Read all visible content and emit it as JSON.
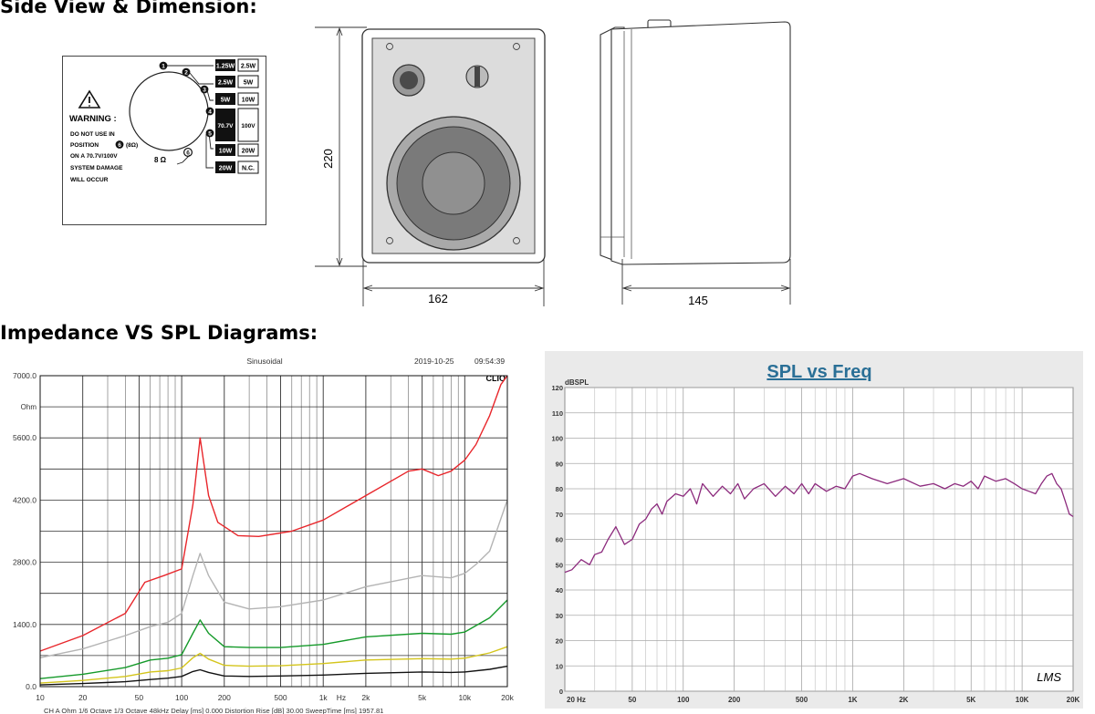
{
  "headers": {
    "side_view": "Side View & Dimension:",
    "diagrams": "Impedance VS SPL Diagrams:"
  },
  "tap_panel": {
    "warning_title": "WARNING :",
    "warning_lines": [
      "DO NOT USE IN",
      "POSITION",
      "(8Ω)",
      "ON A 70.7V/100V",
      "SYSTEM DAMAGE",
      "WILL OCCUR"
    ],
    "position_number": "6",
    "numbers": [
      "1",
      "2",
      "3",
      "4",
      "5",
      "6"
    ],
    "ohm_label": "8 Ω",
    "taps_70v": [
      "1.25W",
      "2.5W",
      "5W",
      "70.7V",
      "10W",
      "20W"
    ],
    "taps_100v": [
      "2.5W",
      "5W",
      "10W",
      "100V",
      "20W",
      "N.C."
    ]
  },
  "dimensions": {
    "height": "220",
    "width": "162",
    "depth": "145"
  },
  "impedance_chart": {
    "header_center": "Sinusoidal",
    "header_date": "2019-10-25",
    "header_time": "09:54:39",
    "logo": "CLIO",
    "y_unit": "Ohm",
    "x_unit": "Hz",
    "y_ticks": [
      "7000.0",
      "5600.0",
      "4200.0",
      "2800.0",
      "1400.0",
      "0.0"
    ],
    "x_ticks": [
      "10",
      "20",
      "50",
      "100",
      "200",
      "500",
      "1k",
      "2k",
      "5k",
      "10k",
      "20k"
    ],
    "footer": "CH A  Ohm   1/6 Octave   1/3 Octave   48kHz   Delay [ms] 0.000   Distortion Rise [dB] 30.00   SweepTime [ms] 1957.81",
    "colors": {
      "red": "#e8262b",
      "gray": "#b4b4b4",
      "green": "#159a2a",
      "yellow": "#d4c51c",
      "black": "#111111"
    }
  },
  "spl_chart": {
    "title": "SPL vs Freq",
    "y_unit": "dBSPL",
    "y_ticks": [
      "120",
      "110",
      "100",
      "90",
      "80",
      "70",
      "60",
      "50",
      "40",
      "30",
      "20",
      "10",
      "0"
    ],
    "x_ticks": [
      "20  Hz",
      "50",
      "100",
      "200",
      "500",
      "1K",
      "2K",
      "5K",
      "10K",
      "20K"
    ],
    "logo": "LMS",
    "curve_color": "#8c2a7d",
    "title_color": "#2a6f96"
  },
  "chart_data": [
    {
      "type": "line",
      "title": "",
      "xlabel": "Hz",
      "ylabel": "Ohm",
      "xscale": "log",
      "xlim": [
        10,
        20000
      ],
      "ylim": [
        0,
        7000
      ],
      "grid": true,
      "series": [
        {
          "color": "#e8262b",
          "x": [
            10,
            20,
            40,
            55,
            75,
            100,
            120,
            135,
            155,
            180,
            250,
            350,
            600,
            1000,
            2000,
            4000,
            5000,
            6500,
            8000,
            10000,
            12000,
            15000,
            18000,
            20000
          ],
          "values": [
            800,
            1150,
            1650,
            2350,
            2500,
            2650,
            4100,
            5600,
            4300,
            3700,
            3400,
            3380,
            3500,
            3750,
            4300,
            4850,
            4900,
            4750,
            4850,
            5100,
            5450,
            6100,
            6800,
            7000
          ]
        },
        {
          "color": "#b4b4b4",
          "x": [
            10,
            20,
            40,
            60,
            80,
            100,
            120,
            135,
            155,
            200,
            300,
            500,
            1000,
            2000,
            5000,
            8000,
            10000,
            12000,
            15000,
            20000
          ],
          "values": [
            650,
            850,
            1150,
            1350,
            1450,
            1650,
            2500,
            3000,
            2500,
            1900,
            1750,
            1800,
            1950,
            2250,
            2500,
            2450,
            2550,
            2750,
            3050,
            4200
          ]
        },
        {
          "color": "#159a2a",
          "x": [
            10,
            20,
            40,
            60,
            80,
            100,
            120,
            135,
            155,
            200,
            300,
            500,
            1000,
            2000,
            5000,
            8000,
            10000,
            15000,
            20000
          ],
          "values": [
            180,
            280,
            430,
            600,
            640,
            720,
            1200,
            1500,
            1200,
            900,
            880,
            880,
            950,
            1120,
            1200,
            1180,
            1230,
            1550,
            1950
          ]
        },
        {
          "color": "#d4c51c",
          "x": [
            10,
            20,
            40,
            60,
            80,
            100,
            120,
            135,
            155,
            200,
            300,
            500,
            1000,
            2000,
            5000,
            8000,
            10000,
            15000,
            20000
          ],
          "values": [
            80,
            140,
            230,
            330,
            360,
            420,
            650,
            750,
            620,
            480,
            460,
            470,
            520,
            600,
            630,
            620,
            640,
            760,
            900
          ]
        },
        {
          "color": "#111111",
          "x": [
            10,
            20,
            40,
            60,
            80,
            100,
            120,
            135,
            155,
            200,
            300,
            500,
            1000,
            2000,
            5000,
            8000,
            10000,
            15000,
            20000
          ],
          "values": [
            40,
            70,
            110,
            160,
            190,
            230,
            340,
            380,
            320,
            240,
            230,
            240,
            260,
            300,
            330,
            320,
            330,
            390,
            460
          ]
        }
      ]
    },
    {
      "type": "line",
      "title": "SPL vs Freq",
      "xlabel": "Hz",
      "ylabel": "dBSPL",
      "xscale": "log",
      "xlim": [
        20,
        20000
      ],
      "ylim": [
        0,
        120
      ],
      "grid": true,
      "series": [
        {
          "color": "#8c2a7d",
          "x": [
            20,
            22,
            25,
            28,
            30,
            33,
            36,
            40,
            45,
            50,
            55,
            60,
            65,
            70,
            75,
            80,
            90,
            100,
            110,
            120,
            130,
            150,
            170,
            190,
            210,
            230,
            260,
            300,
            350,
            400,
            450,
            500,
            550,
            600,
            700,
            800,
            900,
            1000,
            1100,
            1300,
            1600,
            2000,
            2500,
            3000,
            3500,
            4000,
            4500,
            5000,
            5500,
            6000,
            7000,
            8000,
            9000,
            10000,
            11000,
            12000,
            13000,
            14000,
            15000,
            16000,
            17000,
            18000,
            19000,
            20000
          ],
          "values": [
            47,
            48,
            52,
            50,
            54,
            55,
            60,
            65,
            58,
            60,
            66,
            68,
            72,
            74,
            70,
            75,
            78,
            77,
            80,
            74,
            82,
            77,
            81,
            78,
            82,
            76,
            80,
            82,
            77,
            81,
            78,
            82,
            78,
            82,
            79,
            81,
            80,
            85,
            86,
            84,
            82,
            84,
            81,
            82,
            80,
            82,
            81,
            83,
            80,
            85,
            83,
            84,
            82,
            80,
            79,
            78,
            82,
            85,
            86,
            82,
            80,
            75,
            70,
            69
          ]
        }
      ]
    }
  ]
}
